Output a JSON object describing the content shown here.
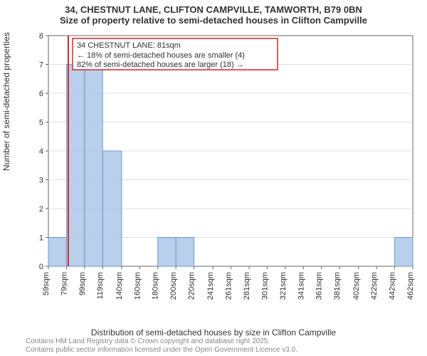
{
  "title_main": "34, CHESTNUT LANE, CLIFTON CAMPVILLE, TAMWORTH, B79 0BN",
  "title_sub": "Size of property relative to semi-detached houses in Clifton Campville",
  "ylabel": "Number of semi-detached properties",
  "xlabel": "Distribution of semi-detached houses by size in Clifton Campville",
  "attribution_line1": "Contains HM Land Registry data © Crown copyright and database right 2025.",
  "attribution_line2": "Contains public sector information licensed under the Open Government Licence v3.0.",
  "histogram": {
    "type": "histogram",
    "x_ticks": [
      59,
      79,
      99,
      119,
      140,
      160,
      180,
      200,
      220,
      241,
      261,
      281,
      301,
      321,
      341,
      361,
      381,
      402,
      422,
      442,
      462
    ],
    "x_tick_labels": [
      "59sqm",
      "79sqm",
      "99sqm",
      "119sqm",
      "140sqm",
      "160sqm",
      "180sqm",
      "200sqm",
      "220sqm",
      "241sqm",
      "261sqm",
      "281sqm",
      "301sqm",
      "321sqm",
      "341sqm",
      "361sqm",
      "381sqm",
      "402sqm",
      "422sqm",
      "442sqm",
      "462sqm"
    ],
    "y_min": 0,
    "y_max": 8,
    "y_tick_step": 1,
    "bars": [
      {
        "x0": 59,
        "x1": 79,
        "count": 1
      },
      {
        "x0": 79,
        "x1": 99,
        "count": 7
      },
      {
        "x0": 99,
        "x1": 119,
        "count": 7
      },
      {
        "x0": 119,
        "x1": 140,
        "count": 4
      },
      {
        "x0": 180,
        "x1": 200,
        "count": 1
      },
      {
        "x0": 200,
        "x1": 220,
        "count": 1
      },
      {
        "x0": 442,
        "x1": 462,
        "count": 1
      }
    ],
    "bar_fill": "#aec7e8",
    "bar_stroke": "#6b9bd1",
    "background_color": "#ffffff",
    "grid_color": "#e0e0e0",
    "axis_color": "#666666",
    "tick_fontsize": 11,
    "label_fontsize": 12
  },
  "marker": {
    "x": 81,
    "color": "#d62728",
    "label_line1": "34 CHESTNUT LANE: 81sqm",
    "label_line2": "← 18% of semi-detached houses are smaller (4)",
    "label_line3": "82% of semi-detached houses are larger (18) →",
    "box_stroke": "#d62728",
    "box_fill": "#ffffff"
  }
}
